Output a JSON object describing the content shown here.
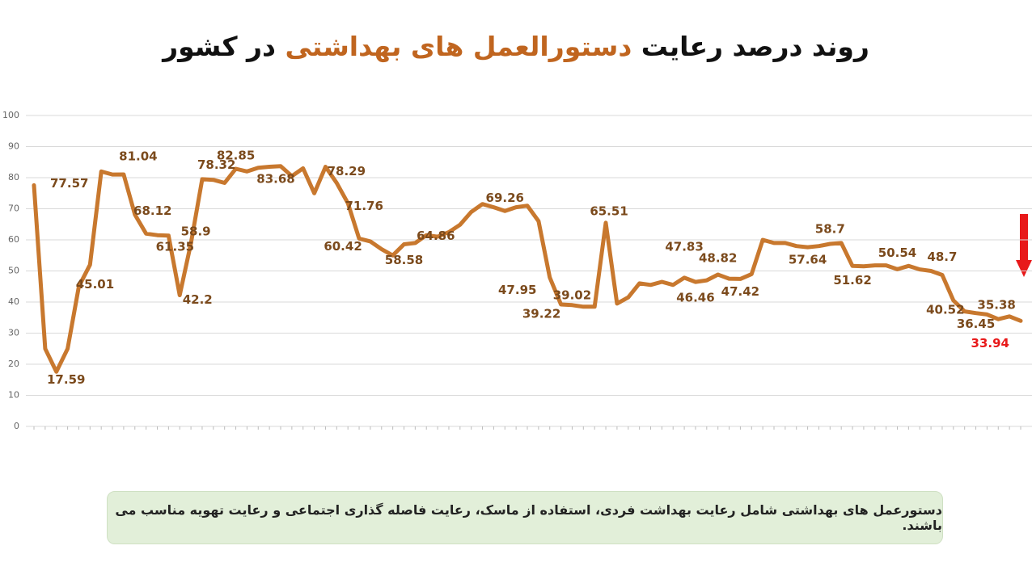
{
  "chart_data": {
    "type": "line",
    "title_parts": [
      "روند درصد رعایت",
      "دستورالعمل های بهداشتی",
      "در کشور"
    ],
    "footnote": "دستورعمل های بهداشتی شامل رعایت بهداشت فردی، استفاده از ماسک، رعایت فاصله گذاری اجتماعی و رعایت تهویه مناسب می باشند.",
    "ylim": [
      0,
      100
    ],
    "yticks": [
      0,
      10,
      20,
      30,
      40,
      50,
      60,
      70,
      80,
      90,
      100
    ],
    "grid": true,
    "series": [
      {
        "color": "#c8782e",
        "label_color": "#7b4a1c",
        "last_label_color": "#e8191a",
        "values": [
          77.57,
          25,
          17.59,
          25,
          45.01,
          52,
          82,
          81,
          81.04,
          68.12,
          62,
          61.5,
          61.35,
          42.2,
          58.9,
          79.5,
          79.3,
          78.32,
          82.85,
          82,
          83.2,
          83.5,
          83.68,
          80.5,
          83,
          75,
          83.5,
          78.29,
          71.76,
          60.42,
          59.5,
          57,
          55,
          58.58,
          59,
          61.5,
          61,
          62.5,
          64.86,
          69,
          71.5,
          70.5,
          69.26,
          70.5,
          71,
          66,
          47.95,
          39.22,
          39.02,
          38.5,
          38.5,
          65.51,
          39.5,
          41.5,
          46,
          45.5,
          46.5,
          45.5,
          47.83,
          46.46,
          47,
          48.82,
          47.5,
          47.42,
          49,
          60,
          59,
          59,
          58,
          57.64,
          58,
          58.7,
          59,
          51.62,
          51.5,
          51.8,
          51.8,
          50.54,
          51.6,
          50.5,
          50,
          48.7,
          40.52,
          37,
          36.45,
          36,
          34.5,
          35.38,
          33.94
        ],
        "value_labels": [
          "77.57",
          null,
          "17.59",
          null,
          "45.01",
          null,
          null,
          null,
          "81.04",
          "68.12",
          null,
          null,
          "61.35",
          "42.2",
          "58.9",
          null,
          null,
          "78.32",
          "82.85",
          null,
          null,
          null,
          "83.68",
          null,
          null,
          null,
          null,
          "78.29",
          "71.76",
          "60.42",
          null,
          null,
          null,
          "58.58",
          null,
          null,
          null,
          null,
          "64.86",
          null,
          null,
          null,
          "69.26",
          null,
          null,
          null,
          "47.95",
          "39.22",
          "39.02",
          null,
          null,
          "65.51",
          null,
          null,
          null,
          null,
          null,
          null,
          "47.83",
          "46.46",
          null,
          "48.82",
          null,
          "47.42",
          null,
          null,
          null,
          null,
          null,
          "57.64",
          null,
          "58.7",
          null,
          "51.62",
          null,
          null,
          null,
          "50.54",
          null,
          null,
          null,
          "48.7",
          "40.52",
          null,
          "36.45",
          null,
          null,
          "35.38",
          "33.94"
        ]
      }
    ]
  }
}
